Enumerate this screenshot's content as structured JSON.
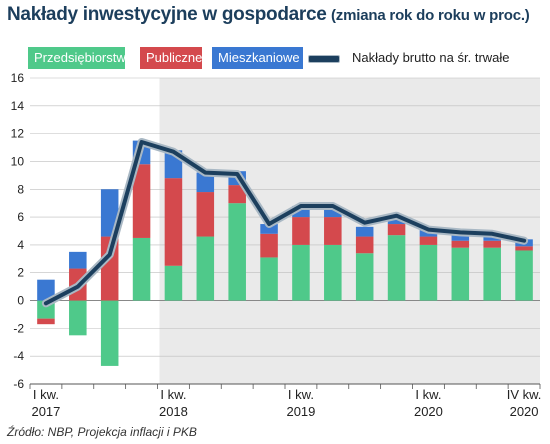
{
  "title": "Nakłady inwestycyjne w gospodarce",
  "subtitle": "(zmiana rok do roku w proc.)",
  "source": "Źródło: NBP, Projekcja inflacji i PKB",
  "colors": {
    "Przedsiębiorstw": "#4fc98a",
    "Publiczne": "#d4494d",
    "Mieszkaniowe": "#3a78d2",
    "line": "#1c3f5e",
    "forecast_shade": "#eaeaea"
  },
  "chart_data": {
    "type": "bar",
    "stacked": true,
    "x": [
      "I kw. 2017",
      "II kw. 2017",
      "III kw. 2017",
      "IV kw. 2017",
      "I kw. 2018",
      "II kw. 2018",
      "III kw. 2018",
      "IV kw. 2018",
      "I kw. 2019",
      "II kw. 2019",
      "III kw. 2019",
      "IV kw. 2019",
      "I kw. 2020",
      "II kw. 2020",
      "III kw. 2020",
      "IV kw. 2020"
    ],
    "xticks": [
      {
        "index": 0,
        "line1": "I kw.",
        "line2": "2017"
      },
      {
        "index": 4,
        "line1": "I kw.",
        "line2": "2018"
      },
      {
        "index": 8,
        "line1": "I kw.",
        "line2": "2019"
      },
      {
        "index": 12,
        "line1": "I kw.",
        "line2": "2020"
      },
      {
        "index": 15,
        "line1": "IV kw.",
        "line2": "2020"
      }
    ],
    "yticks": [
      16,
      14,
      12,
      10,
      8,
      6,
      4,
      2,
      0,
      -2,
      -4,
      -6
    ],
    "ylim": [
      -6,
      16
    ],
    "forecast_from_index": 4,
    "series": [
      {
        "name": "Przedsiębiorstw",
        "values": [
          -1.3,
          -2.5,
          -4.7,
          4.5,
          2.5,
          4.6,
          7.0,
          3.1,
          4.0,
          4.0,
          3.4,
          4.7,
          4.0,
          3.8,
          3.8,
          3.6
        ]
      },
      {
        "name": "Publiczne",
        "values": [
          -0.4,
          2.3,
          4.6,
          5.3,
          6.3,
          3.2,
          1.3,
          1.7,
          2.0,
          2.0,
          1.2,
          0.8,
          0.6,
          0.5,
          0.5,
          0.3
        ]
      },
      {
        "name": "Mieszkaniowe",
        "values": [
          1.5,
          1.2,
          3.4,
          1.7,
          2.0,
          1.4,
          1.0,
          0.7,
          0.8,
          0.7,
          0.7,
          0.6,
          0.6,
          0.5,
          0.5,
          0.5
        ]
      },
      {
        "name": "Nakłady brutto na śr. trwałe",
        "type": "line",
        "values": [
          -0.2,
          1.0,
          3.3,
          11.4,
          10.7,
          9.2,
          9.1,
          5.5,
          6.8,
          6.8,
          5.6,
          6.1,
          5.1,
          4.9,
          4.8,
          4.3
        ]
      }
    ]
  }
}
